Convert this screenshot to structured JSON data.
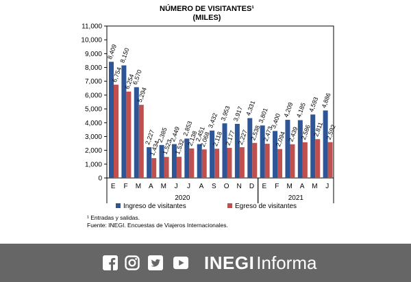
{
  "chart_data": {
    "type": "bar",
    "title": "NÚMERO DE VISITANTES¹",
    "subtitle": "(MILES)",
    "categories": [
      "E",
      "F",
      "M",
      "A",
      "M",
      "J",
      "J",
      "A",
      "S",
      "O",
      "N",
      "D",
      "E",
      "F",
      "M",
      "A",
      "M",
      "J"
    ],
    "groups": [
      {
        "label": "2020",
        "start": 0,
        "end": 11
      },
      {
        "label": "2021",
        "start": 12,
        "end": 17
      }
    ],
    "ylim": [
      0,
      11000
    ],
    "yticks": [
      0,
      1000,
      2000,
      3000,
      4000,
      5000,
      6000,
      7000,
      8000,
      9000,
      10000,
      11000
    ],
    "ytick_labels": [
      "0",
      "1,000",
      "2,000",
      "3,000",
      "4,000",
      "5,000",
      "6,000",
      "7,000",
      "8,000",
      "9,000",
      "10,000",
      "11,000"
    ],
    "series": [
      {
        "name": "Ingreso de visitantes",
        "color": "#2e5596",
        "values": [
          8409,
          8150,
          6570,
          2227,
          2385,
          2449,
          2853,
          2451,
          3432,
          3953,
          3917,
          4331,
          3801,
          3400,
          4209,
          4185,
          4593,
          4886
        ],
        "labels": [
          "8,409",
          "8,150",
          "6,570",
          "2,227",
          "2,385",
          "2,449",
          "2,853",
          "2,451",
          "3,432",
          "3,953",
          "3,917",
          "4,331",
          "3,801",
          "3,400",
          "4,209",
          "4,185",
          "4,593",
          "4,886"
        ]
      },
      {
        "name": "Egreso de visitantes",
        "color": "#c0504d",
        "values": [
          6754,
          6254,
          5294,
          1434,
          1523,
          1532,
          2138,
          2068,
          2118,
          2177,
          2227,
          2538,
          2473,
          2094,
          2439,
          2586,
          2811,
          2592
        ],
        "labels": [
          "6,754",
          "6,254",
          "5,294",
          "1,434",
          "1,523",
          "1,532",
          "2,138",
          "2,068",
          "2,118",
          "2,177",
          "2,227",
          "2,538",
          "2,473",
          "2,094",
          "2,439",
          "2,586",
          "2,811",
          "2,592"
        ]
      }
    ],
    "grid": false,
    "legend": "bottom"
  },
  "notes": {
    "note1": "¹ Entradas y salidas.",
    "source": "Fuente: INEGI. Encuestas de Viajeros Internacionales."
  },
  "footer": {
    "background": "#666666",
    "icons": [
      "facebook-icon",
      "instagram-icon",
      "twitter-icon",
      "youtube-icon"
    ],
    "brand_bold": "INEGI",
    "brand_light": "Informa"
  }
}
